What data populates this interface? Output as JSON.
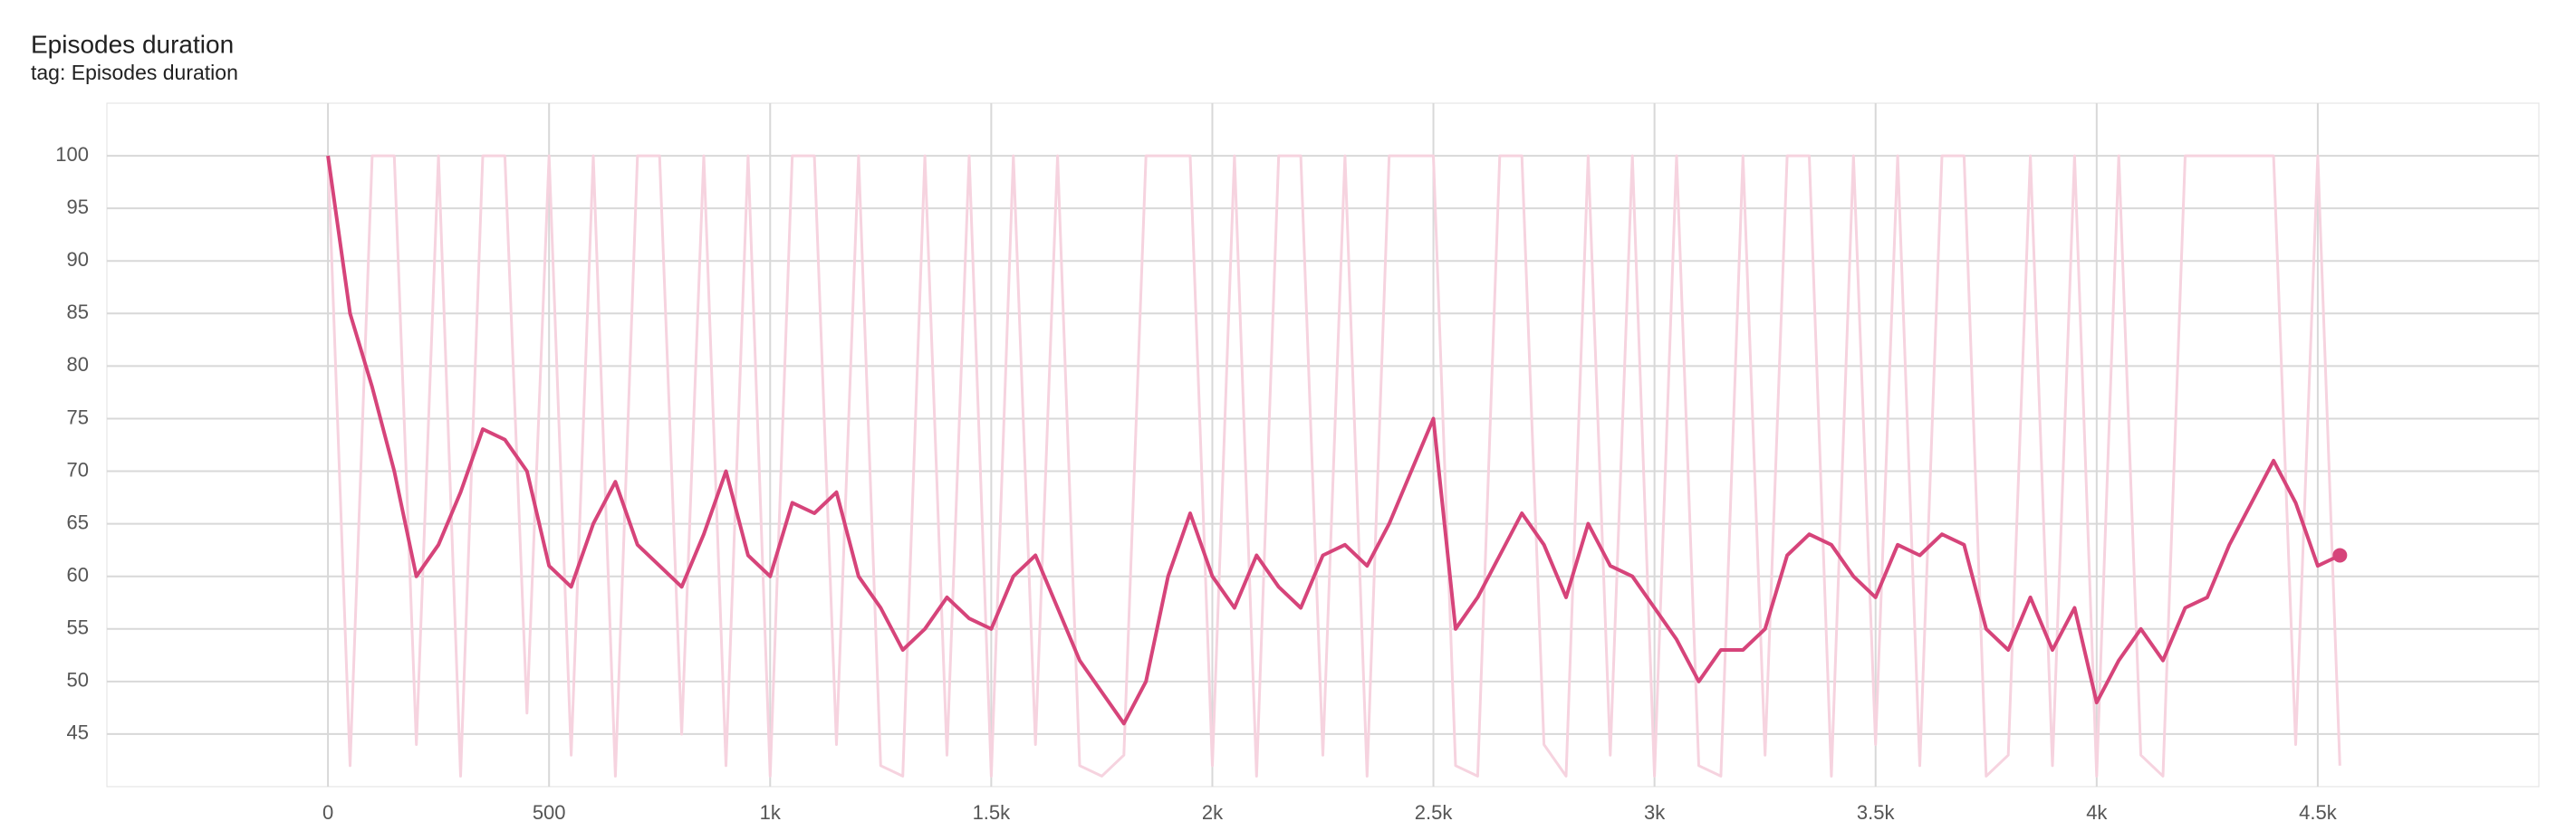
{
  "chart_data": {
    "type": "line",
    "title": "Episodes duration",
    "subtitle": "tag: Episodes duration",
    "x": [
      0,
      50,
      100,
      150,
      200,
      250,
      300,
      350,
      400,
      450,
      500,
      550,
      600,
      650,
      700,
      750,
      800,
      850,
      900,
      950,
      1000,
      1050,
      1100,
      1150,
      1200,
      1250,
      1300,
      1350,
      1400,
      1450,
      1500,
      1550,
      1600,
      1650,
      1700,
      1750,
      1800,
      1850,
      1900,
      1950,
      2000,
      2050,
      2100,
      2150,
      2200,
      2250,
      2300,
      2350,
      2400,
      2450,
      2500,
      2550,
      2600,
      2650,
      2700,
      2750,
      2800,
      2850,
      2900,
      2950,
      3000,
      3050,
      3100,
      3150,
      3200,
      3250,
      3300,
      3350,
      3400,
      3450,
      3500,
      3550,
      3600,
      3650,
      3700,
      3750,
      3800,
      3850,
      3900,
      3950,
      4000,
      4050,
      4100,
      4150,
      4200,
      4250,
      4300,
      4350,
      4400,
      4450,
      4500,
      4550
    ],
    "series": [
      {
        "color": "#f6d3df",
        "values": [
          100,
          42,
          100,
          100,
          44,
          100,
          41,
          100,
          100,
          47,
          100,
          43,
          100,
          41,
          100,
          100,
          45,
          100,
          42,
          100,
          41,
          100,
          100,
          44,
          100,
          42,
          41,
          100,
          43,
          100,
          41,
          100,
          44,
          100,
          42,
          41,
          43,
          100,
          100,
          100,
          42,
          100,
          41,
          100,
          100,
          43,
          100,
          41,
          100,
          100,
          100,
          42,
          41,
          100,
          100,
          44,
          41,
          100,
          43,
          100,
          41,
          100,
          42,
          41,
          100,
          43,
          100,
          100,
          41,
          100,
          44,
          100,
          42,
          100,
          100,
          41,
          43,
          100,
          42,
          100,
          41,
          100,
          43,
          41,
          100,
          100,
          100,
          100,
          100,
          44,
          100,
          42
        ]
      },
      {
        "color": "#d6447a",
        "values": [
          100,
          85,
          78,
          70,
          60,
          63,
          68,
          74,
          73,
          70,
          61,
          59,
          65,
          69,
          63,
          61,
          59,
          64,
          70,
          62,
          60,
          67,
          66,
          68,
          60,
          57,
          53,
          55,
          58,
          56,
          55,
          60,
          62,
          57,
          52,
          49,
          46,
          50,
          60,
          66,
          60,
          57,
          62,
          59,
          57,
          62,
          63,
          61,
          65,
          70,
          75,
          55,
          58,
          62,
          66,
          63,
          58,
          65,
          61,
          60,
          57,
          54,
          50,
          53,
          53,
          55,
          62,
          64,
          63,
          60,
          58,
          63,
          62,
          64,
          63,
          55,
          53,
          58,
          53,
          57,
          48,
          52,
          55,
          52,
          57,
          58,
          63,
          67,
          71,
          67,
          61,
          62
        ]
      }
    ],
    "xlim": [
      -500,
      5000
    ],
    "xticks": [
      0,
      500,
      {
        "value": 1000,
        "label": "1k"
      },
      {
        "value": 1500,
        "label": "1.5k"
      },
      {
        "value": 2000,
        "label": "2k"
      },
      {
        "value": 2500,
        "label": "2.5k"
      },
      {
        "value": 3000,
        "label": "3k"
      },
      {
        "value": 3500,
        "label": "3.5k"
      },
      {
        "value": 4000,
        "label": "4k"
      },
      {
        "value": 4500,
        "label": "4.5k"
      }
    ],
    "ylim": [
      40,
      105
    ],
    "yticks": [
      45,
      50,
      55,
      60,
      65,
      70,
      75,
      80,
      85,
      90,
      95,
      100
    ],
    "grid": true
  }
}
